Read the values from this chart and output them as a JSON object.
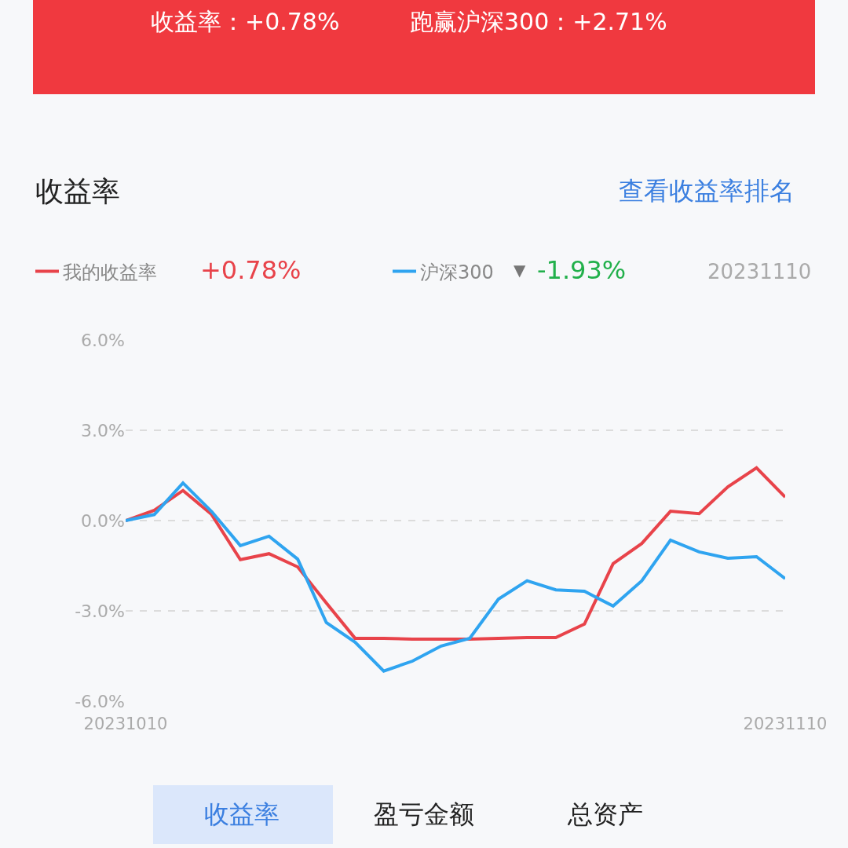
{
  "chart_data": {
    "type": "line",
    "title": "收益率",
    "categories": [
      "20231010",
      null,
      null,
      null,
      null,
      null,
      null,
      null,
      null,
      null,
      null,
      null,
      null,
      null,
      null,
      null,
      null,
      null,
      null,
      null,
      null,
      null,
      null,
      "20231110"
    ],
    "series": [
      {
        "name": "我的收益率",
        "color": "#e8434a",
        "values": [
          0,
          0.34,
          1.0,
          0.2,
          -1.3,
          -1.1,
          -1.54,
          -2.74,
          -3.91,
          -3.91,
          -3.94,
          -3.94,
          -3.94,
          -3.91,
          -3.89,
          -3.89,
          -3.44,
          -1.43,
          -0.76,
          0.31,
          0.23,
          1.12,
          1.75,
          0.78
        ]
      },
      {
        "name": "沪深300",
        "color": "#2fa4f0",
        "values": [
          0,
          0.2,
          1.25,
          0.3,
          -0.83,
          -0.52,
          -1.28,
          -3.39,
          -4.04,
          -5.0,
          -4.67,
          -4.17,
          -3.91,
          -2.61,
          -2.0,
          -2.3,
          -2.35,
          -2.84,
          -2.0,
          -0.65,
          -1.04,
          -1.25,
          -1.2,
          -1.93
        ]
      }
    ],
    "ylim": [
      -6,
      6
    ],
    "yticks": [
      {
        "value": -6,
        "label": "-6.0%"
      },
      {
        "value": -3,
        "label": "-3.0%"
      },
      {
        "value": 0,
        "label": "0.0%"
      },
      {
        "value": 3,
        "label": "3.0%"
      },
      {
        "value": 6,
        "label": "6.0%"
      }
    ],
    "grid": "y",
    "legend": "top left",
    "marker": "none",
    "line_style": "solid",
    "annotations": [
      "收益率：+0.78%",
      "跑赢沪深300：+2.71%",
      "查看收益率排名",
      "+0.78%",
      "▼",
      "-1.93%",
      "20231110",
      "收益率",
      "盈亏金额",
      "总资产"
    ]
  }
}
